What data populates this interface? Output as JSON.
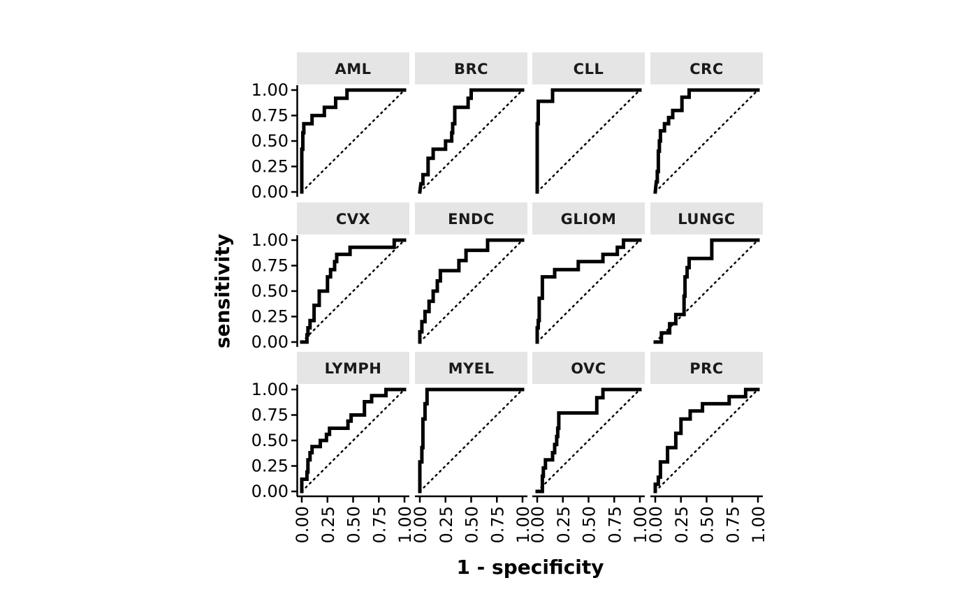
{
  "chart_data": {
    "type": "line",
    "layout": {
      "rows": 3,
      "cols": 4
    },
    "xlabel": "1 - specificity",
    "ylabel": "sensitivity",
    "xlim": [
      0,
      1
    ],
    "ylim": [
      0,
      1
    ],
    "x_ticks": [
      "0.00",
      "0.25",
      "0.50",
      "0.75",
      "1.00"
    ],
    "y_ticks": [
      "0.00",
      "0.25",
      "0.50",
      "0.75",
      "1.00"
    ],
    "reference_line": "dotted diagonal",
    "grid": false,
    "line_color": "#000000",
    "strip_fill": "#e5e5e5",
    "panels": [
      {
        "name": "AML",
        "curve": [
          [
            0,
            0
          ],
          [
            0,
            0.42
          ],
          [
            0.01,
            0.42
          ],
          [
            0.01,
            0.58
          ],
          [
            0.02,
            0.58
          ],
          [
            0.02,
            0.67
          ],
          [
            0.1,
            0.67
          ],
          [
            0.1,
            0.75
          ],
          [
            0.22,
            0.75
          ],
          [
            0.22,
            0.83
          ],
          [
            0.33,
            0.83
          ],
          [
            0.33,
            0.92
          ],
          [
            0.44,
            0.92
          ],
          [
            0.44,
            1
          ],
          [
            1,
            1
          ]
        ]
      },
      {
        "name": "BRC",
        "curve": [
          [
            0,
            0
          ],
          [
            0.01,
            0.08
          ],
          [
            0.03,
            0.08
          ],
          [
            0.03,
            0.17
          ],
          [
            0.08,
            0.17
          ],
          [
            0.08,
            0.33
          ],
          [
            0.13,
            0.33
          ],
          [
            0.13,
            0.42
          ],
          [
            0.25,
            0.42
          ],
          [
            0.25,
            0.5
          ],
          [
            0.31,
            0.5
          ],
          [
            0.31,
            0.58
          ],
          [
            0.32,
            0.58
          ],
          [
            0.32,
            0.67
          ],
          [
            0.34,
            0.67
          ],
          [
            0.34,
            0.83
          ],
          [
            0.47,
            0.83
          ],
          [
            0.47,
            0.92
          ],
          [
            0.5,
            0.92
          ],
          [
            0.5,
            1
          ],
          [
            1,
            1
          ]
        ]
      },
      {
        "name": "CLL",
        "curve": [
          [
            0,
            0
          ],
          [
            0,
            0.67
          ],
          [
            0.01,
            0.67
          ],
          [
            0.01,
            0.89
          ],
          [
            0.15,
            0.89
          ],
          [
            0.15,
            1
          ],
          [
            1,
            1
          ]
        ]
      },
      {
        "name": "CRC",
        "curve": [
          [
            0,
            0
          ],
          [
            0.01,
            0.1
          ],
          [
            0.02,
            0.1
          ],
          [
            0.02,
            0.2
          ],
          [
            0.03,
            0.2
          ],
          [
            0.03,
            0.4
          ],
          [
            0.04,
            0.4
          ],
          [
            0.04,
            0.5
          ],
          [
            0.05,
            0.5
          ],
          [
            0.05,
            0.6
          ],
          [
            0.09,
            0.6
          ],
          [
            0.09,
            0.67
          ],
          [
            0.13,
            0.67
          ],
          [
            0.13,
            0.73
          ],
          [
            0.17,
            0.73
          ],
          [
            0.17,
            0.8
          ],
          [
            0.26,
            0.8
          ],
          [
            0.26,
            0.93
          ],
          [
            0.33,
            0.93
          ],
          [
            0.33,
            1
          ],
          [
            1,
            1
          ]
        ]
      },
      {
        "name": "CVX",
        "curve": [
          [
            0,
            0
          ],
          [
            0.05,
            0
          ],
          [
            0.05,
            0.07
          ],
          [
            0.06,
            0.07
          ],
          [
            0.06,
            0.14
          ],
          [
            0.08,
            0.14
          ],
          [
            0.08,
            0.21
          ],
          [
            0.12,
            0.21
          ],
          [
            0.12,
            0.36
          ],
          [
            0.17,
            0.36
          ],
          [
            0.17,
            0.5
          ],
          [
            0.25,
            0.5
          ],
          [
            0.25,
            0.64
          ],
          [
            0.28,
            0.64
          ],
          [
            0.28,
            0.71
          ],
          [
            0.32,
            0.71
          ],
          [
            0.32,
            0.79
          ],
          [
            0.34,
            0.79
          ],
          [
            0.34,
            0.86
          ],
          [
            0.47,
            0.86
          ],
          [
            0.47,
            0.93
          ],
          [
            0.9,
            0.93
          ],
          [
            0.9,
            1
          ],
          [
            1,
            1
          ]
        ]
      },
      {
        "name": "ENDC",
        "curve": [
          [
            0,
            0
          ],
          [
            0,
            0.1
          ],
          [
            0.02,
            0.1
          ],
          [
            0.02,
            0.2
          ],
          [
            0.05,
            0.2
          ],
          [
            0.05,
            0.3
          ],
          [
            0.09,
            0.3
          ],
          [
            0.09,
            0.4
          ],
          [
            0.13,
            0.4
          ],
          [
            0.13,
            0.5
          ],
          [
            0.17,
            0.5
          ],
          [
            0.17,
            0.6
          ],
          [
            0.2,
            0.6
          ],
          [
            0.2,
            0.7
          ],
          [
            0.38,
            0.7
          ],
          [
            0.38,
            0.8
          ],
          [
            0.45,
            0.8
          ],
          [
            0.45,
            0.9
          ],
          [
            0.66,
            0.9
          ],
          [
            0.66,
            1
          ],
          [
            1,
            1
          ]
        ]
      },
      {
        "name": "GLIOM",
        "curve": [
          [
            0,
            0
          ],
          [
            0,
            0.14
          ],
          [
            0.01,
            0.14
          ],
          [
            0.01,
            0.21
          ],
          [
            0.02,
            0.21
          ],
          [
            0.02,
            0.43
          ],
          [
            0.05,
            0.43
          ],
          [
            0.05,
            0.64
          ],
          [
            0.17,
            0.64
          ],
          [
            0.17,
            0.71
          ],
          [
            0.4,
            0.71
          ],
          [
            0.4,
            0.79
          ],
          [
            0.64,
            0.79
          ],
          [
            0.64,
            0.86
          ],
          [
            0.78,
            0.86
          ],
          [
            0.78,
            0.93
          ],
          [
            0.84,
            0.93
          ],
          [
            0.84,
            1
          ],
          [
            1,
            1
          ]
        ]
      },
      {
        "name": "LUNGC",
        "curve": [
          [
            0,
            0
          ],
          [
            0.06,
            0
          ],
          [
            0.06,
            0.09
          ],
          [
            0.14,
            0.09
          ],
          [
            0.14,
            0.18
          ],
          [
            0.2,
            0.18
          ],
          [
            0.2,
            0.27
          ],
          [
            0.28,
            0.27
          ],
          [
            0.28,
            0.45
          ],
          [
            0.29,
            0.45
          ],
          [
            0.29,
            0.64
          ],
          [
            0.31,
            0.64
          ],
          [
            0.31,
            0.73
          ],
          [
            0.33,
            0.73
          ],
          [
            0.33,
            0.82
          ],
          [
            0.55,
            0.82
          ],
          [
            0.55,
            1
          ],
          [
            1,
            1
          ]
        ]
      },
      {
        "name": "LYMPH",
        "curve": [
          [
            0,
            0
          ],
          [
            0,
            0.12
          ],
          [
            0.05,
            0.12
          ],
          [
            0.05,
            0.19
          ],
          [
            0.06,
            0.19
          ],
          [
            0.06,
            0.31
          ],
          [
            0.08,
            0.31
          ],
          [
            0.08,
            0.38
          ],
          [
            0.1,
            0.38
          ],
          [
            0.1,
            0.44
          ],
          [
            0.18,
            0.44
          ],
          [
            0.18,
            0.5
          ],
          [
            0.24,
            0.5
          ],
          [
            0.24,
            0.56
          ],
          [
            0.27,
            0.56
          ],
          [
            0.27,
            0.62
          ],
          [
            0.45,
            0.62
          ],
          [
            0.45,
            0.69
          ],
          [
            0.48,
            0.69
          ],
          [
            0.48,
            0.75
          ],
          [
            0.61,
            0.75
          ],
          [
            0.61,
            0.88
          ],
          [
            0.68,
            0.88
          ],
          [
            0.68,
            0.94
          ],
          [
            0.82,
            0.94
          ],
          [
            0.82,
            1
          ],
          [
            1,
            1
          ]
        ]
      },
      {
        "name": "MYEL",
        "curve": [
          [
            0,
            0
          ],
          [
            0,
            0.29
          ],
          [
            0.02,
            0.29
          ],
          [
            0.02,
            0.43
          ],
          [
            0.03,
            0.43
          ],
          [
            0.03,
            0.71
          ],
          [
            0.05,
            0.71
          ],
          [
            0.05,
            0.86
          ],
          [
            0.07,
            0.86
          ],
          [
            0.07,
            1
          ],
          [
            1,
            1
          ]
        ]
      },
      {
        "name": "OVC",
        "curve": [
          [
            0,
            0
          ],
          [
            0.05,
            0
          ],
          [
            0.05,
            0.15
          ],
          [
            0.06,
            0.15
          ],
          [
            0.06,
            0.23
          ],
          [
            0.08,
            0.23
          ],
          [
            0.08,
            0.31
          ],
          [
            0.15,
            0.31
          ],
          [
            0.15,
            0.38
          ],
          [
            0.17,
            0.38
          ],
          [
            0.17,
            0.46
          ],
          [
            0.19,
            0.46
          ],
          [
            0.19,
            0.54
          ],
          [
            0.2,
            0.54
          ],
          [
            0.2,
            0.62
          ],
          [
            0.21,
            0.62
          ],
          [
            0.21,
            0.77
          ],
          [
            0.58,
            0.77
          ],
          [
            0.58,
            0.92
          ],
          [
            0.64,
            0.92
          ],
          [
            0.64,
            1
          ],
          [
            1,
            1
          ]
        ]
      },
      {
        "name": "PRC",
        "curve": [
          [
            0,
            0
          ],
          [
            0,
            0.07
          ],
          [
            0.03,
            0.07
          ],
          [
            0.03,
            0.14
          ],
          [
            0.05,
            0.14
          ],
          [
            0.05,
            0.29
          ],
          [
            0.12,
            0.29
          ],
          [
            0.12,
            0.43
          ],
          [
            0.2,
            0.43
          ],
          [
            0.2,
            0.57
          ],
          [
            0.25,
            0.57
          ],
          [
            0.25,
            0.71
          ],
          [
            0.34,
            0.71
          ],
          [
            0.34,
            0.79
          ],
          [
            0.46,
            0.79
          ],
          [
            0.46,
            0.86
          ],
          [
            0.72,
            0.86
          ],
          [
            0.72,
            0.93
          ],
          [
            0.88,
            0.93
          ],
          [
            0.88,
            1
          ],
          [
            1,
            1
          ]
        ]
      }
    ]
  }
}
